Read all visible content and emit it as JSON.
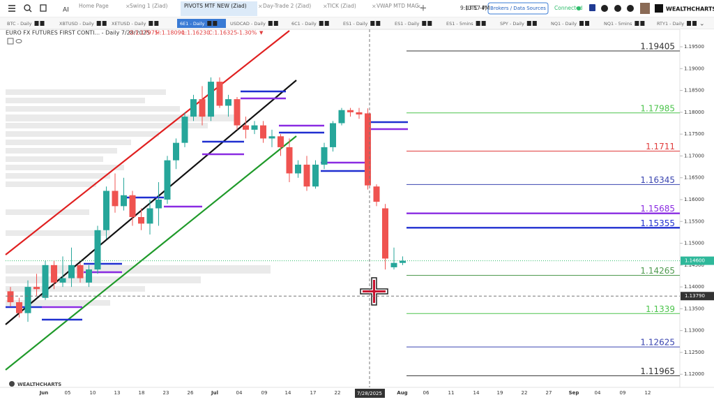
{
  "toolbar": {
    "ai": "AI",
    "tabs": [
      "Home Page",
      "Swing 1 (Ziad)",
      "PIVOTS MTF NEW (Ziad)",
      "Day-Trade 2 (Ziad)",
      "TICK (Ziad)",
      "VWAP MTD MAG..."
    ],
    "time": "9:13:57 PM",
    "timezone": "(UTC -4)",
    "brokers": "Brokers / Data Sources",
    "status": "Connected",
    "logo": "WEALTHCHARTS"
  },
  "symbols": [
    "BTC - Daily",
    "XBTUSD - Daily",
    "XETUSD - Daily",
    "6E1 - Daily",
    "USDCAD - Daily",
    "6C1 - Daily",
    "ES1 - Daily",
    "ES1 - Daily",
    "ES1 - 5mins",
    "SPY - Daily",
    "NQ1 - Daily",
    "NQ1 - 5mins",
    "RTY1 - Daily"
  ],
  "chart": {
    "legend": {
      "title": "EURO FX FUTURES FIRST CONTI... - Daily 7/28/2025",
      "ohlc": [
        "O:1.17975",
        "H:1.18090",
        "L:1.16230",
        "C:1.16325"
      ],
      "change": "-1.30%"
    },
    "ylim": [
      1.117,
      1.199
    ],
    "yticks": [
      {
        "value": 1.195,
        "label": "1.19500"
      },
      {
        "value": 1.19,
        "label": "1.19000"
      },
      {
        "value": 1.185,
        "label": "1.18500"
      },
      {
        "value": 1.18,
        "label": "1.18000"
      },
      {
        "value": 1.175,
        "label": "1.17500"
      },
      {
        "value": 1.17,
        "label": "1.17000"
      },
      {
        "value": 1.165,
        "label": "1.16500"
      },
      {
        "value": 1.16,
        "label": "1.16000"
      },
      {
        "value": 1.155,
        "label": "1.15500"
      },
      {
        "value": 1.15,
        "label": "1.15000"
      },
      {
        "value": 1.145,
        "label": "1.14500"
      },
      {
        "value": 1.14,
        "label": "1.14000"
      },
      {
        "value": 1.135,
        "label": "1.13500"
      },
      {
        "value": 1.13,
        "label": "1.13000"
      },
      {
        "value": 1.125,
        "label": "1.12500"
      },
      {
        "value": 1.12,
        "label": "1.12000"
      }
    ],
    "last_price": {
      "value": 1.146,
      "label": "1.14600"
    },
    "crosshair": {
      "value": 1.1379,
      "label": "1.13790",
      "date": "7/28/2025"
    },
    "levels": [
      {
        "value": 1.19405,
        "color": "#333333"
      },
      {
        "value": 1.17985,
        "color": "#4cc44c"
      },
      {
        "value": 1.1711,
        "color": "#e03c3c"
      },
      {
        "value": 1.16345,
        "color": "#3a45b0"
      },
      {
        "value": 1.15685,
        "color": "#8a2be2"
      },
      {
        "value": 1.15355,
        "color": "#1f2fd0"
      },
      {
        "value": 1.14265,
        "color": "#4f9a4f"
      },
      {
        "value": 1.1339,
        "color": "#4cc44c"
      },
      {
        "value": 1.12625,
        "color": "#3a45b0"
      },
      {
        "value": 1.11965,
        "color": "#333333"
      }
    ],
    "candles": [
      [
        1.139,
        1.14,
        1.1355,
        1.1365
      ],
      [
        1.1365,
        1.1375,
        1.133,
        1.134
      ],
      [
        1.134,
        1.1415,
        1.132,
        1.14
      ],
      [
        1.14,
        1.143,
        1.138,
        1.1395
      ],
      [
        1.1375,
        1.146,
        1.137,
        1.145
      ],
      [
        1.145,
        1.146,
        1.1395,
        1.141
      ],
      [
        1.141,
        1.147,
        1.14,
        1.142
      ],
      [
        1.142,
        1.149,
        1.14,
        1.145
      ],
      [
        1.145,
        1.1455,
        1.141,
        1.142
      ],
      [
        1.141,
        1.145,
        1.14,
        1.144
      ],
      [
        1.144,
        1.154,
        1.143,
        1.153
      ],
      [
        1.153,
        1.163,
        1.151,
        1.162
      ],
      [
        1.162,
        1.166,
        1.157,
        1.1585
      ],
      [
        1.1585,
        1.165,
        1.1575,
        1.161
      ],
      [
        1.161,
        1.162,
        1.154,
        1.156
      ],
      [
        1.156,
        1.158,
        1.153,
        1.1545
      ],
      [
        1.1545,
        1.16,
        1.152,
        1.158
      ],
      [
        1.158,
        1.164,
        1.154,
        1.16
      ],
      [
        1.16,
        1.17,
        1.159,
        1.169
      ],
      [
        1.169,
        1.174,
        1.167,
        1.173
      ],
      [
        1.173,
        1.18,
        1.172,
        1.179
      ],
      [
        1.179,
        1.184,
        1.178,
        1.183
      ],
      [
        1.183,
        1.186,
        1.177,
        1.179
      ],
      [
        1.179,
        1.188,
        1.178,
        1.187
      ],
      [
        1.187,
        1.188,
        1.181,
        1.1815
      ],
      [
        1.1815,
        1.184,
        1.179,
        1.183
      ],
      [
        1.183,
        1.1835,
        1.176,
        1.177
      ],
      [
        1.177,
        1.179,
        1.174,
        1.176
      ],
      [
        1.176,
        1.178,
        1.175,
        1.177
      ],
      [
        1.177,
        1.178,
        1.173,
        1.174
      ],
      [
        1.174,
        1.176,
        1.172,
        1.1745
      ],
      [
        1.1745,
        1.175,
        1.17,
        1.172
      ],
      [
        1.172,
        1.174,
        1.164,
        1.166
      ],
      [
        1.166,
        1.169,
        1.165,
        1.168
      ],
      [
        1.168,
        1.17,
        1.162,
        1.163
      ],
      [
        1.163,
        1.169,
        1.1625,
        1.168
      ],
      [
        1.168,
        1.173,
        1.167,
        1.172
      ],
      [
        1.172,
        1.178,
        1.171,
        1.1775
      ],
      [
        1.1775,
        1.181,
        1.177,
        1.1805
      ],
      [
        1.1805,
        1.181,
        1.179,
        1.18
      ],
      [
        1.18,
        1.181,
        1.1785,
        1.1795
      ],
      [
        1.17975,
        1.1809,
        1.1623,
        1.16325
      ],
      [
        1.163,
        1.1635,
        1.1585,
        1.1595
      ],
      [
        1.158,
        1.159,
        1.144,
        1.1465
      ],
      [
        1.1445,
        1.149,
        1.144,
        1.1455
      ],
      [
        1.1455,
        1.147,
        1.145,
        1.146
      ]
    ],
    "dates": [
      "Jun",
      "05",
      "10",
      "13",
      "18",
      "23",
      "26",
      "Jul",
      "04",
      "09",
      "14",
      "17",
      "22",
      "Aug",
      "06",
      "11",
      "14",
      "19",
      "22",
      "27",
      "Sep",
      "04",
      "09",
      "12"
    ],
    "watermark": "WEALTHCHARTS"
  }
}
